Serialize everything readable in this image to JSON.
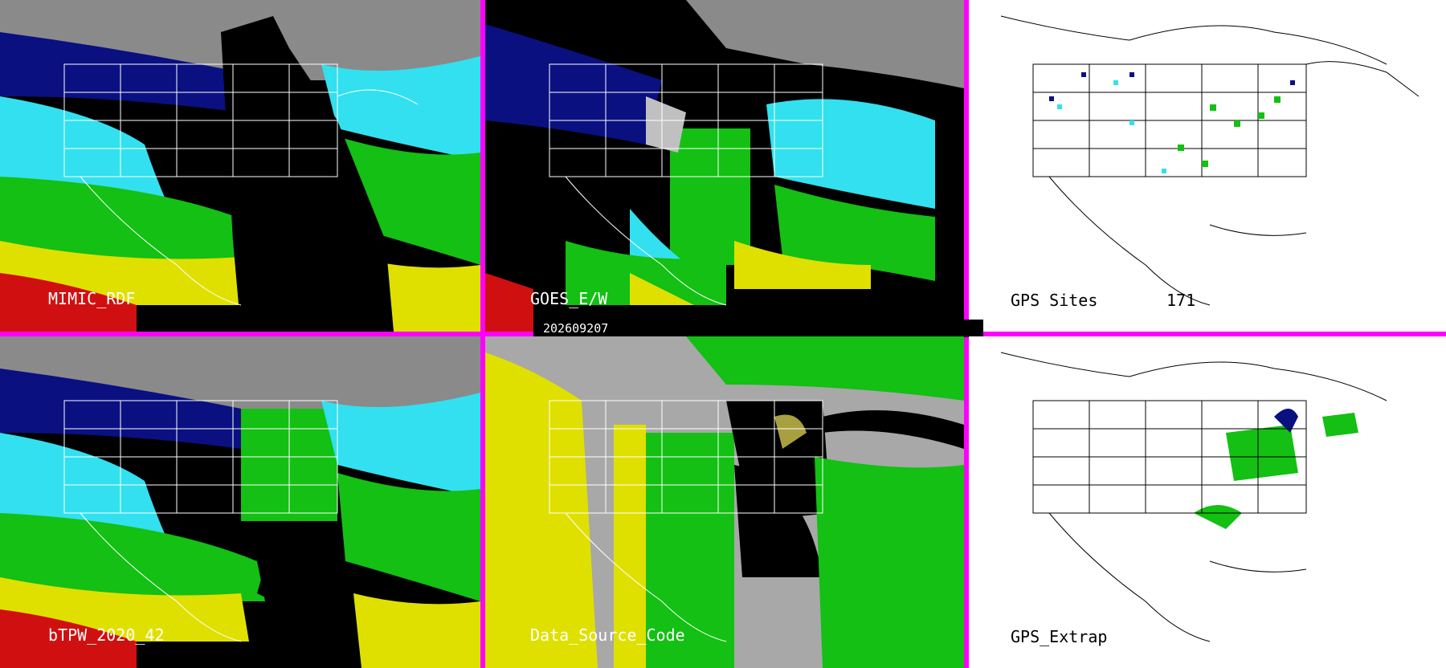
{
  "timestamp": "202609207",
  "panels": [
    {
      "id": "mimic",
      "label": "MIMIC_RDF",
      "style": "tpw-swath"
    },
    {
      "id": "goes",
      "label": "GOES_E/W",
      "style": "tpw-goes"
    },
    {
      "id": "gps-sites",
      "label": "GPS Sites",
      "count": "171",
      "style": "white-sites"
    },
    {
      "id": "btpw",
      "label": "bTPW_2020_42",
      "style": "tpw-full"
    },
    {
      "id": "dsc",
      "label": "Data_Source_Code",
      "style": "source"
    },
    {
      "id": "gps-extrap",
      "label": "GPS_Extrap",
      "style": "white-extrap"
    }
  ],
  "colors": {
    "frame": "#ff00ff",
    "gray_top": "#8a8a8a",
    "navy": "#0a1080",
    "cyan": "#33e0f0",
    "green": "#13c013",
    "yellow": "#e0e000",
    "olive": "#a8a040",
    "red": "#d01010"
  }
}
